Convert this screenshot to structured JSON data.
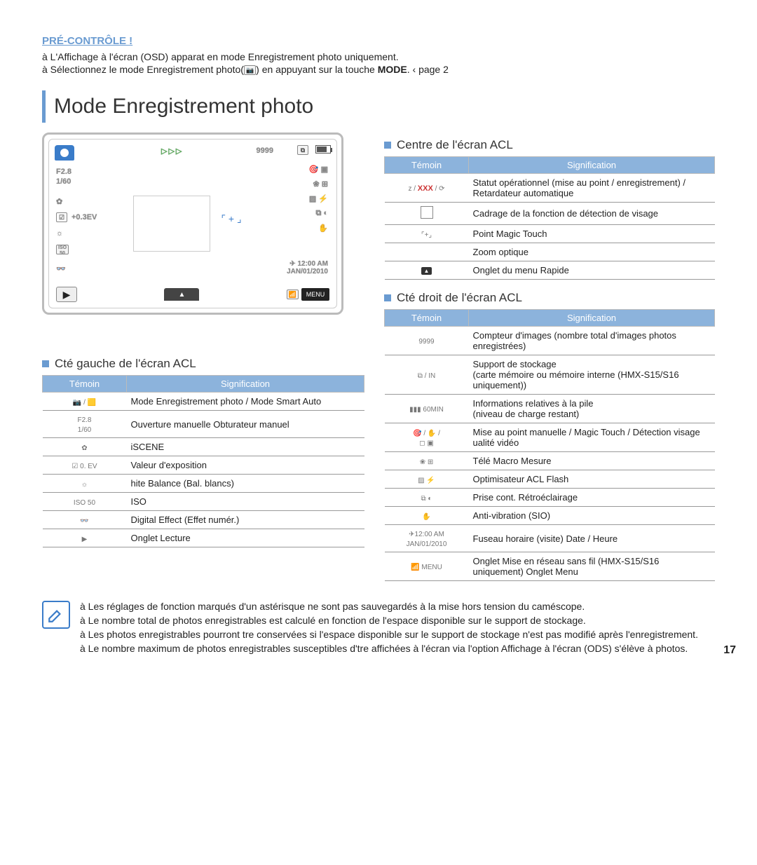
{
  "precontrol": {
    "title": "PRÉ-CONTRÔLE !",
    "line1_a": "à  L'Affichage à l'écran (OSD) apparat en mode Enregistrement photo uniquement.",
    "line2_a": "à  Sélectionnez le mode Enregistrement photo(",
    "line2_b": ") en appuyant sur la touche ",
    "line2_mode": "MODE",
    "line2_c": ". ‹ page 2"
  },
  "heading": "Mode Enregistrement photo",
  "lcd": {
    "top_counter": "9999",
    "fvalue": "F2.8",
    "shutter": "1/60",
    "ev": "+0.3EV",
    "iso": "ISO",
    "iso_sub": "50",
    "time": "12:00 AM",
    "date": "JAN/01/2010",
    "menu": "MENU",
    "play_triangles": "▷▷▷"
  },
  "left_section_title": "Cté gauche de l'écran ACL",
  "center_section_title": "Centre de l'écran ACL",
  "right_section_title": "Cté droit de l'écran ACL",
  "th_temoin": "Témoin",
  "th_signification": "Signification",
  "left_table": [
    {
      "icon": "📷 / 🟨",
      "sig": "Mode Enregistrement photo / Mode Smart Auto"
    },
    {
      "icon": "F2.8\n1/60",
      "sig": "Ouverture manuelle   Obturateur manuel"
    },
    {
      "icon": "✿",
      "sig": "iSCENE"
    },
    {
      "icon": "☑ 0. EV",
      "sig": "Valeur d'exposition"
    },
    {
      "icon": "☼",
      "sig": "hite Balance (Bal. blancs)"
    },
    {
      "icon": "ISO 50",
      "sig": "ISO"
    },
    {
      "icon": "👓",
      "sig": "Digital Effect (Effet numér.)"
    },
    {
      "icon": "▶",
      "sig": "Onglet Lecture"
    }
  ],
  "center_table": [
    {
      "icon": "z / XXX / ⟳",
      "sig": "Statut opérationnel (mise au point / enregistrement) / Retardateur automatique"
    },
    {
      "icon": "▢",
      "sig": "Cadrage de la fonction de détection de visage"
    },
    {
      "icon": "⌜+⌟",
      "sig": "Point Magic Touch"
    },
    {
      "icon": "",
      "sig": "Zoom optique"
    },
    {
      "icon": "▲",
      "sig": "Onglet du menu Rapide"
    }
  ],
  "right_table": [
    {
      "icon": "9999",
      "sig": "Compteur d'images (nombre total d'images photos enregistrées)"
    },
    {
      "icon": "⧉ / IN",
      "sig": "Support de stockage\n(carte mémoire ou mémoire interne (HMX-S15/S16 uniquement))"
    },
    {
      "icon": "▮▮▮ 60MIN",
      "sig": "Informations relatives à la pile\n(niveau de charge restant)"
    },
    {
      "icon": "🎯 / ✋ /\n◻ ▣",
      "sig": "Mise au point manuelle  / Magic Touch  / Détection visage   ualité vidéo"
    },
    {
      "icon": "❀  ⊞",
      "sig": "Télé Macro  Mesure"
    },
    {
      "icon": "▨  ⚡",
      "sig": "Optimisateur ACL  Flash"
    },
    {
      "icon": "⧉  ◐",
      "sig": "Prise cont.  Rétroéclairage"
    },
    {
      "icon": "✋",
      "sig": "Anti-vibration (SIO)"
    },
    {
      "icon": "✈12:00 AM\nJAN/01/2010",
      "sig": "Fuseau horaire (visite)  Date / Heure"
    },
    {
      "icon": "📶  MENU",
      "sig": "Onglet Mise en réseau sans fil (HMX-S15/S16 uniquement)  Onglet Menu"
    }
  ],
  "notes": [
    "à  Les réglages de fonction marqués d'un astérisque    ne sont pas sauvegardés à la mise hors tension du caméscope.",
    "à  Le nombre total de photos enregistrables est calculé en fonction de l'espace disponible sur le support de stockage.",
    "à  Les photos enregistrables pourront tre conservées si l'espace disponible sur le support de stockage n'est pas modifié après l'enregistrement.",
    "à  Le nombre maximum de photos enregistrables susceptibles d'tre affichées à l'écran via l'option Affichage à l'écran (ODS) s'élève à        photos."
  ],
  "page_number": "17",
  "colors": {
    "accent": "#6a9bd1",
    "table_header": "#8cb3dc"
  }
}
